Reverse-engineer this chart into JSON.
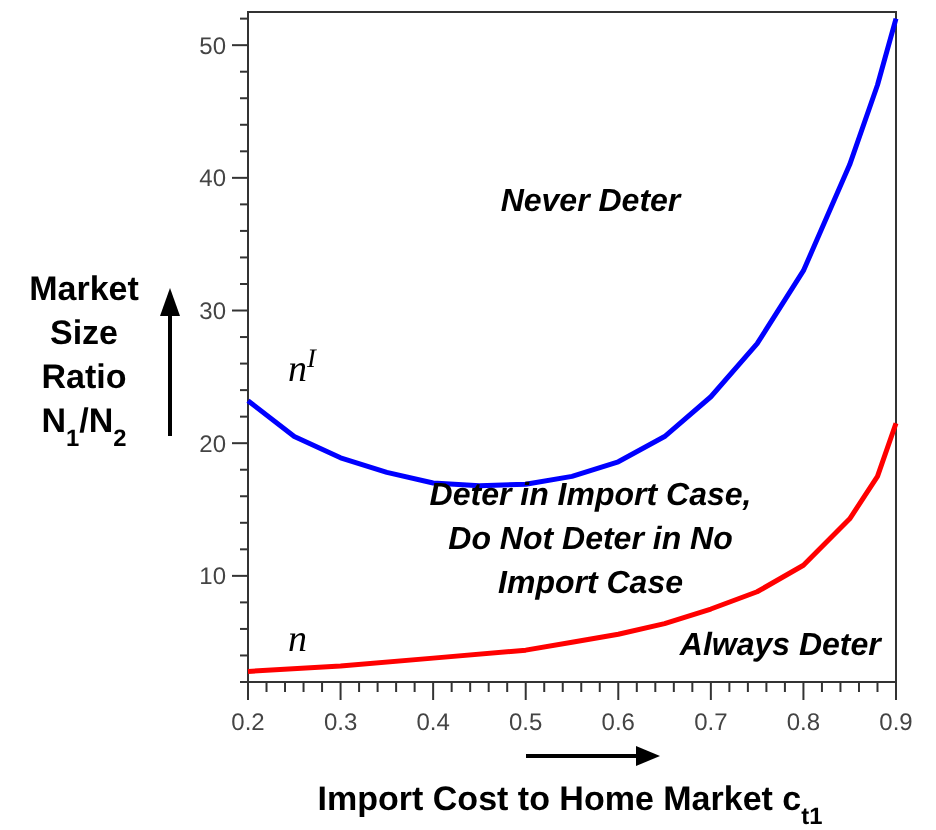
{
  "chart_data": {
    "type": "line",
    "xlabel": "Import Cost to Home Market c$_{t1}$",
    "ylabel": "Market Size Ratio N$_{1}$/N$_{2}$",
    "xlim": [
      0.2,
      0.9
    ],
    "xticks": [
      0.2,
      0.3,
      0.4,
      0.5,
      0.6,
      0.7,
      0.8,
      0.9
    ],
    "ylim": [
      2,
      52.5
    ],
    "yticks": [
      10,
      20,
      30,
      40,
      50
    ],
    "grid": false,
    "marker": "none",
    "line_style": "solid",
    "series": [
      {
        "name": "n$^{I}$",
        "color": "#0000ff",
        "x": [
          0.2,
          0.25,
          0.3,
          0.35,
          0.4,
          0.45,
          0.5,
          0.55,
          0.6,
          0.65,
          0.7,
          0.75,
          0.8,
          0.85,
          0.88,
          0.9
        ],
        "values": [
          23.2,
          20.5,
          18.9,
          17.8,
          17.0,
          16.8,
          16.9,
          17.5,
          18.6,
          20.5,
          23.5,
          27.5,
          33,
          41,
          47,
          52
        ]
      },
      {
        "name": "n",
        "color": "#ff0000",
        "x": [
          0.2,
          0.3,
          0.4,
          0.5,
          0.55,
          0.6,
          0.65,
          0.7,
          0.75,
          0.8,
          0.85,
          0.88,
          0.9
        ],
        "values": [
          2.8,
          3.2,
          3.8,
          4.4,
          5,
          5.6,
          6.4,
          7.5,
          8.8,
          10.8,
          14.3,
          17.5,
          21.5
        ]
      }
    ],
    "annotations": [
      "Never Deter",
      "Deter in Import Case,\nDo Not Deter in No\nImport Case",
      "Always Deter"
    ]
  }
}
